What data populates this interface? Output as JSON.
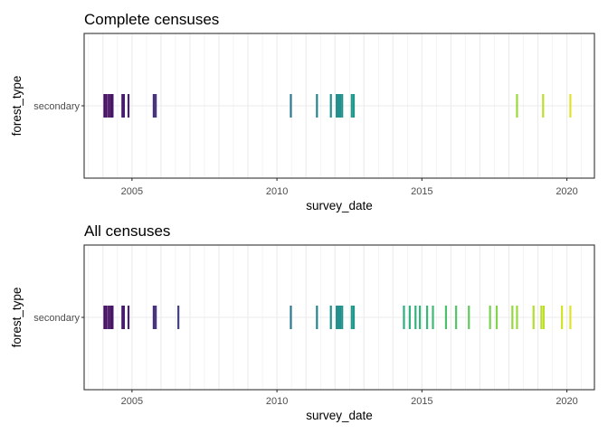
{
  "chart_data": [
    {
      "type": "strip",
      "title": "Complete censuses",
      "xlabel": "survey_date",
      "ylabel": "forest_type",
      "categories": [
        "secondary"
      ],
      "xlim": [
        2003.35,
        2020.95
      ],
      "x_ticks": [
        2005,
        2010,
        2015,
        2020
      ],
      "x_tick_labels": [
        "2005",
        "2010",
        "2015",
        "2020"
      ],
      "grid": true,
      "legend": "none",
      "color_scale": "viridis",
      "values": [
        2004.05,
        2004.12,
        2004.2,
        2004.27,
        2004.33,
        2004.67,
        2004.72,
        2004.88,
        2005.75,
        2005.82,
        2010.48,
        2011.38,
        2011.86,
        2012.06,
        2012.12,
        2012.18,
        2012.25,
        2012.58,
        2012.65,
        2018.28,
        2019.18,
        2020.12
      ]
    },
    {
      "type": "strip",
      "title": "All censuses",
      "xlabel": "survey_date",
      "ylabel": "forest_type",
      "categories": [
        "secondary"
      ],
      "xlim": [
        2003.35,
        2020.95
      ],
      "x_ticks": [
        2005,
        2010,
        2015,
        2020
      ],
      "x_tick_labels": [
        "2005",
        "2010",
        "2015",
        "2020"
      ],
      "grid": true,
      "legend": "none",
      "color_scale": "viridis",
      "values": [
        2004.05,
        2004.12,
        2004.2,
        2004.27,
        2004.33,
        2004.67,
        2004.72,
        2004.88,
        2005.75,
        2005.82,
        2006.6,
        2010.48,
        2011.38,
        2011.86,
        2012.06,
        2012.12,
        2012.18,
        2012.25,
        2012.58,
        2012.65,
        2014.38,
        2014.58,
        2014.78,
        2014.93,
        2015.18,
        2015.38,
        2015.83,
        2016.18,
        2016.62,
        2017.35,
        2017.58,
        2018.12,
        2018.28,
        2018.85,
        2019.12,
        2019.2,
        2019.83,
        2020.12
      ]
    }
  ]
}
